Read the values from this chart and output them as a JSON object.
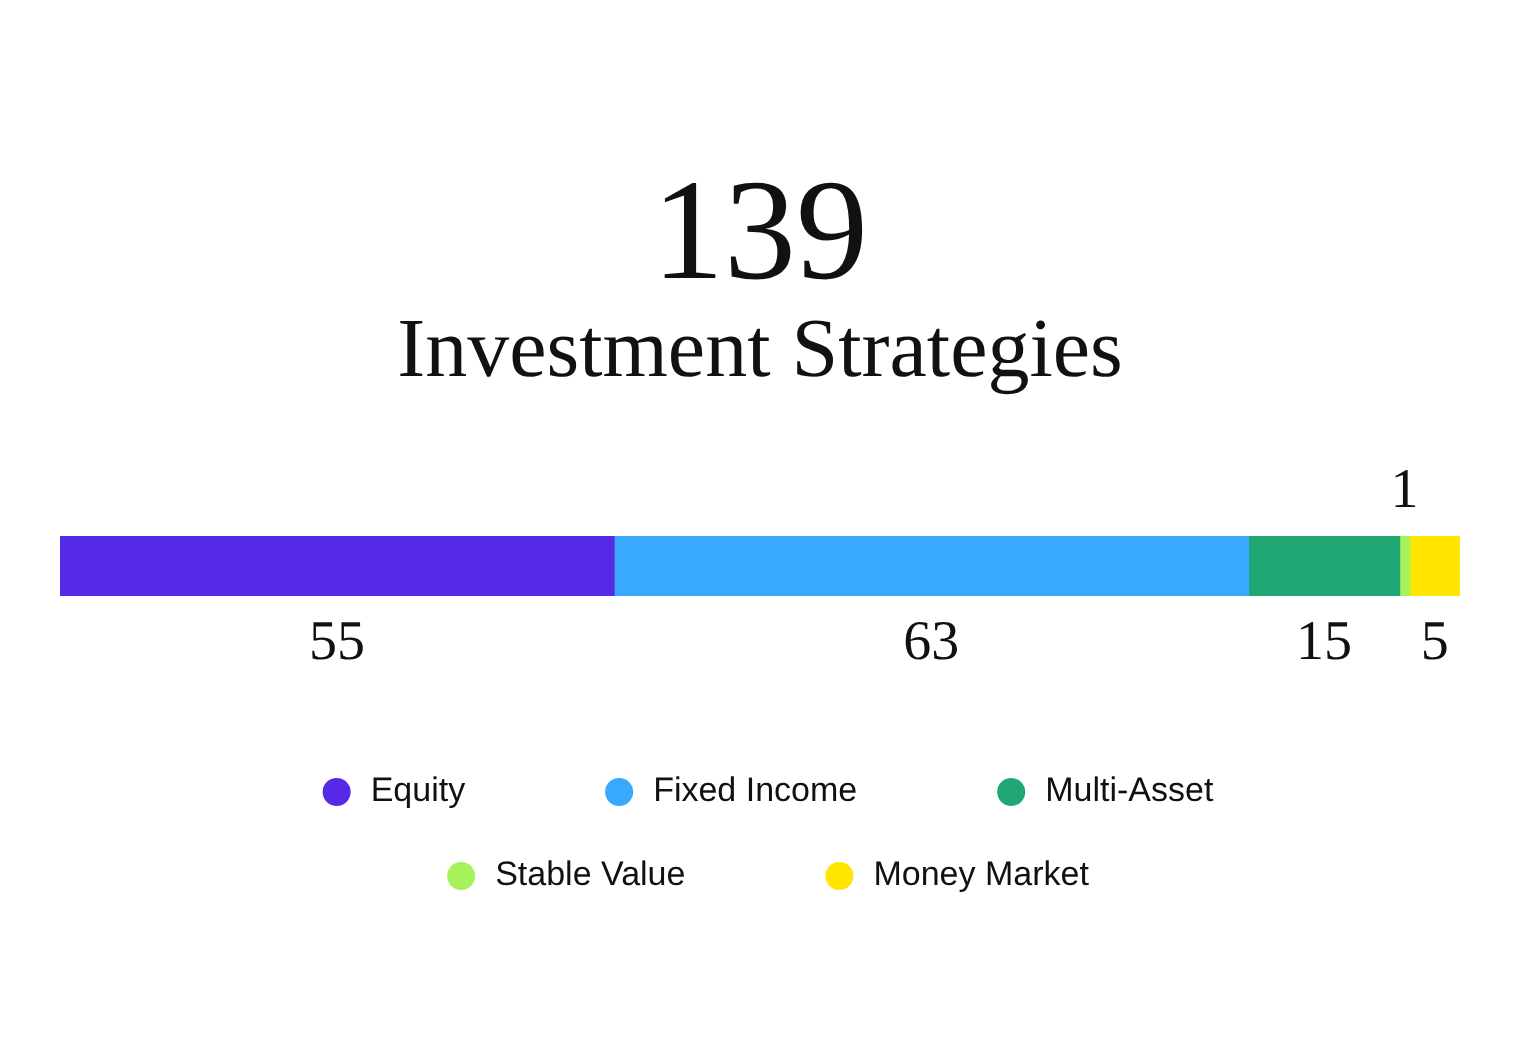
{
  "chart_data": {
    "type": "bar",
    "orientation": "horizontal",
    "stacked": true,
    "title": "139",
    "subtitle": "Investment Strategies",
    "categories": [
      null
    ],
    "series": [
      {
        "name": "Equity",
        "color": "#5629e6",
        "values": [
          55
        ]
      },
      {
        "name": "Fixed Income",
        "color": "#38a9fd",
        "values": [
          63
        ]
      },
      {
        "name": "Multi-Asset",
        "color": "#20a774",
        "values": [
          15
        ]
      },
      {
        "name": "Stable Value",
        "color": "#a6f25c",
        "values": [
          1
        ]
      },
      {
        "name": "Money Market",
        "color": "#ffe500",
        "values": [
          5
        ]
      }
    ],
    "xlim": [
      0,
      139
    ],
    "tick_labels": false,
    "data_labels": true,
    "legend": "bottom"
  }
}
